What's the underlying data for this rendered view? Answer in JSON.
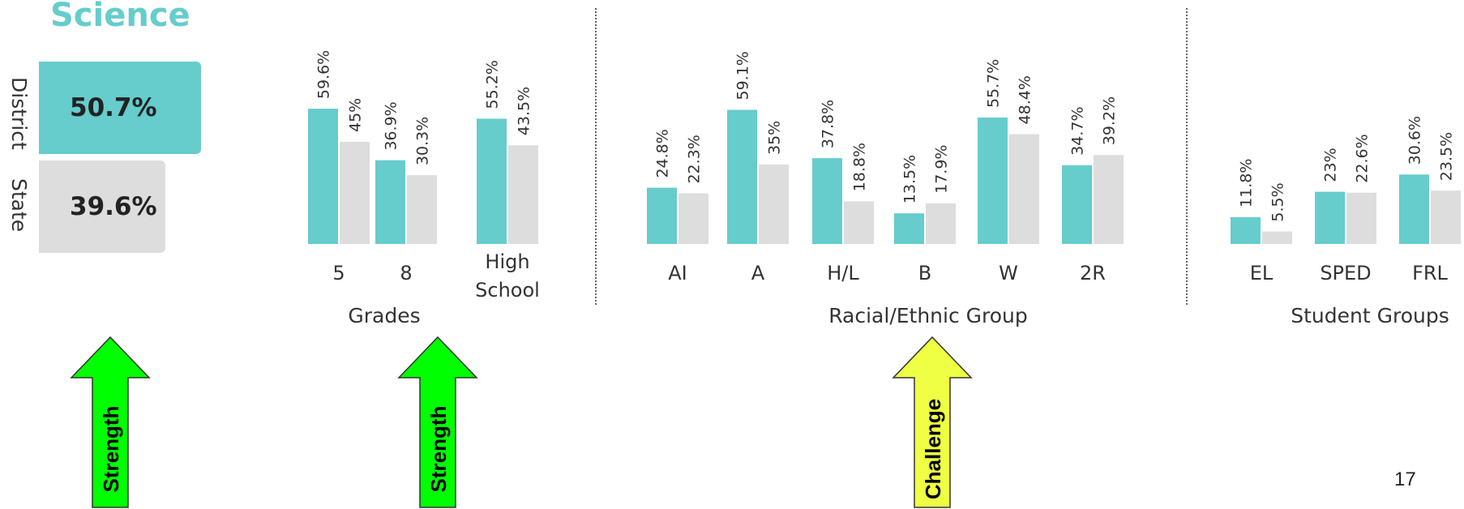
{
  "title": "Science",
  "summary": {
    "district": {
      "label": "District",
      "value": "50.7%",
      "color": "#66cccc"
    },
    "state": {
      "label": "State",
      "value": "39.6%",
      "color": "#dddddd"
    }
  },
  "chart_data": [
    {
      "type": "bar",
      "xlabel": "Grades",
      "categories": [
        "5",
        "8",
        "High School"
      ],
      "series": [
        {
          "name": "District",
          "color": "#66cccc",
          "values": [
            59.6,
            36.9,
            55.2
          ],
          "labels": [
            "59.6%",
            "36.9%",
            "55.2%"
          ]
        },
        {
          "name": "State",
          "color": "#dddddd",
          "values": [
            45,
            30.3,
            43.5
          ],
          "labels": [
            "45%",
            "30.3%",
            "43.5%"
          ]
        }
      ]
    },
    {
      "type": "bar",
      "xlabel": "Racial/Ethnic Group",
      "categories": [
        "AI",
        "A",
        "H/L",
        "B",
        "W",
        "2R"
      ],
      "series": [
        {
          "name": "District",
          "color": "#66cccc",
          "values": [
            24.8,
            59.1,
            37.8,
            13.5,
            55.7,
            34.7
          ],
          "labels": [
            "24.8%",
            "59.1%",
            "37.8%",
            "13.5%",
            "55.7%",
            "34.7%"
          ]
        },
        {
          "name": "State",
          "color": "#dddddd",
          "values": [
            22.3,
            35,
            18.8,
            17.9,
            48.4,
            39.2
          ],
          "labels": [
            "22.3%",
            "35%",
            "18.8%",
            "17.9%",
            "48.4%",
            "39.2%"
          ]
        }
      ]
    },
    {
      "type": "bar",
      "xlabel": "Student Groups",
      "categories": [
        "EL",
        "SPED",
        "FRL"
      ],
      "series": [
        {
          "name": "District",
          "color": "#66cccc",
          "values": [
            11.8,
            23,
            30.6
          ],
          "labels": [
            "11.8%",
            "23%",
            "30.6%"
          ]
        },
        {
          "name": "State",
          "color": "#dddddd",
          "values": [
            5.5,
            22.6,
            23.5
          ],
          "labels": [
            "5.5%",
            "22.6%",
            "23.5%"
          ]
        }
      ]
    }
  ],
  "annotations": [
    {
      "label": "Strength",
      "color": "#00ff00"
    },
    {
      "label": "Strength",
      "color": "#00ff00"
    },
    {
      "label": "Challenge",
      "color": "#eeff44"
    }
  ],
  "page_number": "17"
}
